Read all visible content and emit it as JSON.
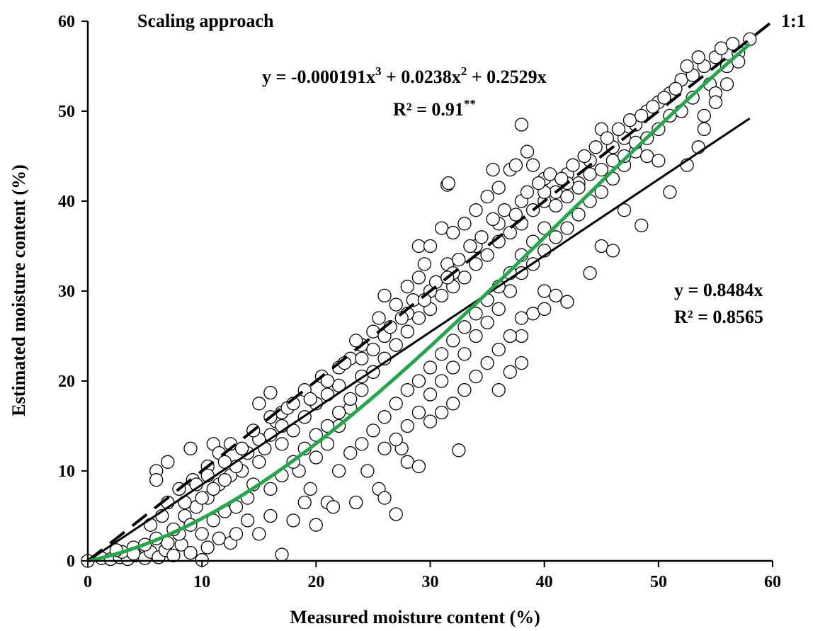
{
  "chart_data": {
    "type": "scatter",
    "title": "Scaling approach",
    "xlabel": "Measured moisture content (%)",
    "ylabel": "Estimated moisture content (%)",
    "xlim": [
      0,
      60
    ],
    "ylim": [
      0,
      60
    ],
    "x_ticks": [
      "0",
      "10",
      "20",
      "30",
      "40",
      "50",
      "60"
    ],
    "y_ticks": [
      "0",
      "10",
      "20",
      "30",
      "40",
      "50",
      "60"
    ],
    "grid": false,
    "legend": "none",
    "colors": {
      "points_edge": "#000000",
      "points_fill": "#ffffff",
      "linear_fit": "#000000",
      "one_to_one": "#000000",
      "poly_fit": "#22a84a"
    },
    "reference_line": {
      "label": "1:1",
      "slope": 1,
      "x_range": [
        0,
        60
      ],
      "style": "dashed"
    },
    "linear_fit": {
      "slope": 0.8484,
      "x_range": [
        0,
        58
      ],
      "equation": "y = 0.8484x",
      "r2_text": "R² = 0.8565"
    },
    "poly_fit": {
      "coefficients": {
        "a3": -0.000191,
        "a2": 0.0238,
        "a1": 0.2529
      },
      "x_range": [
        0,
        58
      ],
      "equation_parts": {
        "p1": "y = -0.000191x",
        "s1": "3",
        "p2": " + 0.0238x",
        "s2": "2",
        "p3": " + 0.2529x"
      },
      "r2_parts": {
        "base": "R² = 0.91",
        "sup": "**"
      }
    },
    "points": [
      [
        0.0,
        0.0
      ],
      [
        1.2,
        0.3
      ],
      [
        2.0,
        0.2
      ],
      [
        2.8,
        0.4
      ],
      [
        3.5,
        0.2
      ],
      [
        4.2,
        0.6
      ],
      [
        5.0,
        0.3
      ],
      [
        5.5,
        1.0
      ],
      [
        6.2,
        0.4
      ],
      [
        6.8,
        1.2
      ],
      [
        7.5,
        0.6
      ],
      [
        8.2,
        1.8
      ],
      [
        9.0,
        0.9
      ],
      [
        10.0,
        0.1
      ],
      [
        10.5,
        1.5
      ],
      [
        11.5,
        2.5
      ],
      [
        12.5,
        2.0
      ],
      [
        13.0,
        3.0
      ],
      [
        3.0,
        1.0
      ],
      [
        4.0,
        1.5
      ],
      [
        2.5,
        1.2
      ],
      [
        6.0,
        10.0
      ],
      [
        6.0,
        9.0
      ],
      [
        7.0,
        11.0
      ],
      [
        9.0,
        12.5
      ],
      [
        11.0,
        13.0
      ],
      [
        12.5,
        13.0
      ],
      [
        11.5,
        12.0
      ],
      [
        10.5,
        10.5
      ],
      [
        9.2,
        9.0
      ],
      [
        8.0,
        8.0
      ],
      [
        7.0,
        6.5
      ],
      [
        6.5,
        5.0
      ],
      [
        5.5,
        4.0
      ],
      [
        8.5,
        5.0
      ],
      [
        9.5,
        6.0
      ],
      [
        10.5,
        7.0
      ],
      [
        11.5,
        8.5
      ],
      [
        12.5,
        9.5
      ],
      [
        13.5,
        10.0
      ],
      [
        14.0,
        7.0
      ],
      [
        14.5,
        8.5
      ],
      [
        15.0,
        11.0
      ],
      [
        15.5,
        12.5
      ],
      [
        16.0,
        14.0
      ],
      [
        16.5,
        15.5
      ],
      [
        17.0,
        16.5
      ],
      [
        15.0,
        17.5
      ],
      [
        16.0,
        18.7
      ],
      [
        17.5,
        17.0
      ],
      [
        15.0,
        3.0
      ],
      [
        16.0,
        5.0
      ],
      [
        17.0,
        0.7
      ],
      [
        18.0,
        4.5
      ],
      [
        19.0,
        6.5
      ],
      [
        20.0,
        4.0
      ],
      [
        21.0,
        6.5
      ],
      [
        21.5,
        6.0
      ],
      [
        19.5,
        8.0
      ],
      [
        18.5,
        10.0
      ],
      [
        20.0,
        11.5
      ],
      [
        21.0,
        13.0
      ],
      [
        22.0,
        15.0
      ],
      [
        23.0,
        17.0
      ],
      [
        24.0,
        19.0
      ],
      [
        23.5,
        6.5
      ],
      [
        24.5,
        10.0
      ],
      [
        25.5,
        8.0
      ],
      [
        26.0,
        7.0
      ],
      [
        27.0,
        5.2
      ],
      [
        28.0,
        11.0
      ],
      [
        29.0,
        10.5
      ],
      [
        27.5,
        12.5
      ],
      [
        32.5,
        12.3
      ],
      [
        19.0,
        19.0
      ],
      [
        20.5,
        20.5
      ],
      [
        22.0,
        21.5
      ],
      [
        23.0,
        22.5
      ],
      [
        24.0,
        24.0
      ],
      [
        25.0,
        25.5
      ],
      [
        25.5,
        27.0
      ],
      [
        26.0,
        29.5
      ],
      [
        27.0,
        28.5
      ],
      [
        28.0,
        30.5
      ],
      [
        29.0,
        31.5
      ],
      [
        29.5,
        33.0
      ],
      [
        29.0,
        35.0
      ],
      [
        30.0,
        35.0
      ],
      [
        31.0,
        37.0
      ],
      [
        32.0,
        36.5
      ],
      [
        31.5,
        33.0
      ],
      [
        31.5,
        41.8
      ],
      [
        31.6,
        42.0
      ],
      [
        33.0,
        37.5
      ],
      [
        34.0,
        39.0
      ],
      [
        35.0,
        40.5
      ],
      [
        35.5,
        43.5
      ],
      [
        36.0,
        41.5
      ],
      [
        37.0,
        43.5
      ],
      [
        37.5,
        44.0
      ],
      [
        38.0,
        48.5
      ],
      [
        38.5,
        45.5
      ],
      [
        39.0,
        44.0
      ],
      [
        40.0,
        42.5
      ],
      [
        41.0,
        41.0
      ],
      [
        42.0,
        43.0
      ],
      [
        43.0,
        42.0
      ],
      [
        44.0,
        44.5
      ],
      [
        45.0,
        48.0
      ],
      [
        46.0,
        46.0
      ],
      [
        47.0,
        47.0
      ],
      [
        48.0,
        48.5
      ],
      [
        49.0,
        50.0
      ],
      [
        50.0,
        51.0
      ],
      [
        51.0,
        52.0
      ],
      [
        52.0,
        53.5
      ],
      [
        53.0,
        54.0
      ],
      [
        54.0,
        55.0
      ],
      [
        55.0,
        56.0
      ],
      [
        55.5,
        57.0
      ],
      [
        56.0,
        55.0
      ],
      [
        57.0,
        56.5
      ],
      [
        58.0,
        58.0
      ],
      [
        54.5,
        53.0
      ],
      [
        55.0,
        52.0
      ],
      [
        53.0,
        51.5
      ],
      [
        52.0,
        50.0
      ],
      [
        51.0,
        49.5
      ],
      [
        50.0,
        48.0
      ],
      [
        49.0,
        47.0
      ],
      [
        48.0,
        45.5
      ],
      [
        47.0,
        44.0
      ],
      [
        46.0,
        42.5
      ],
      [
        45.0,
        41.0
      ],
      [
        44.0,
        40.0
      ],
      [
        43.0,
        38.5
      ],
      [
        42.0,
        37.0
      ],
      [
        41.0,
        36.0
      ],
      [
        40.0,
        34.5
      ],
      [
        39.0,
        33.0
      ],
      [
        38.0,
        32.0
      ],
      [
        37.0,
        30.0
      ],
      [
        36.0,
        28.0
      ],
      [
        35.0,
        26.5
      ],
      [
        34.0,
        25.0
      ],
      [
        33.0,
        23.0
      ],
      [
        32.0,
        21.5
      ],
      [
        31.0,
        20.0
      ],
      [
        30.0,
        18.5
      ],
      [
        29.0,
        16.5
      ],
      [
        28.0,
        15.0
      ],
      [
        27.0,
        13.5
      ],
      [
        26.0,
        12.5
      ],
      [
        36.0,
        19.0
      ],
      [
        37.0,
        21.0
      ],
      [
        38.0,
        22.0
      ],
      [
        38.0,
        25.0
      ],
      [
        39.0,
        27.5
      ],
      [
        40.0,
        28.0
      ],
      [
        40.0,
        30.0
      ],
      [
        41.0,
        29.5
      ],
      [
        42.0,
        28.8
      ],
      [
        44.0,
        32.0
      ],
      [
        45.0,
        35.0
      ],
      [
        46.0,
        34.5
      ],
      [
        47.0,
        39.0
      ],
      [
        48.5,
        37.3
      ],
      [
        49.0,
        45.0
      ],
      [
        50.0,
        44.5
      ],
      [
        51.0,
        41.0
      ],
      [
        52.5,
        44.0
      ],
      [
        53.5,
        46.0
      ],
      [
        54.0,
        48.0
      ],
      [
        54.0,
        49.5
      ],
      [
        55.0,
        51.0
      ],
      [
        56.0,
        53.0
      ],
      [
        57.0,
        55.5
      ],
      [
        10.0,
        3.0
      ],
      [
        11.0,
        4.5
      ],
      [
        12.0,
        5.5
      ],
      [
        13.0,
        6.0
      ],
      [
        14.0,
        4.5
      ],
      [
        16.0,
        8.0
      ],
      [
        17.0,
        9.5
      ],
      [
        18.0,
        11.0
      ],
      [
        19.0,
        12.5
      ],
      [
        20.0,
        14.0
      ],
      [
        21.0,
        15.0
      ],
      [
        22.0,
        16.5
      ],
      [
        23.0,
        18.0
      ],
      [
        24.0,
        20.5
      ],
      [
        25.0,
        21.0
      ],
      [
        26.0,
        22.5
      ],
      [
        27.0,
        24.0
      ],
      [
        28.0,
        25.5
      ],
      [
        29.0,
        27.0
      ],
      [
        30.0,
        28.0
      ],
      [
        31.0,
        29.5
      ],
      [
        32.0,
        30.5
      ],
      [
        33.0,
        31.5
      ],
      [
        34.0,
        33.0
      ],
      [
        35.0,
        34.0
      ],
      [
        36.0,
        35.5
      ],
      [
        37.0,
        36.5
      ],
      [
        38.0,
        37.5
      ],
      [
        39.0,
        39.0
      ],
      [
        40.0,
        40.0
      ],
      [
        41.0,
        39.5
      ],
      [
        42.0,
        40.5
      ],
      [
        43.0,
        41.5
      ],
      [
        44.0,
        43.0
      ],
      [
        45.0,
        43.5
      ],
      [
        46.0,
        44.5
      ],
      [
        47.0,
        45.0
      ],
      [
        48.0,
        46.5
      ],
      [
        22.0,
        10.0
      ],
      [
        23.0,
        12.0
      ],
      [
        24.0,
        13.0
      ],
      [
        25.0,
        14.5
      ],
      [
        26.0,
        16.0
      ],
      [
        27.0,
        17.5
      ],
      [
        28.0,
        19.0
      ],
      [
        29.0,
        20.0
      ],
      [
        30.0,
        21.5
      ],
      [
        31.0,
        23.0
      ],
      [
        32.0,
        24.5
      ],
      [
        33.0,
        26.0
      ],
      [
        34.0,
        27.5
      ],
      [
        35.0,
        29.0
      ],
      [
        36.0,
        30.5
      ],
      [
        37.0,
        32.0
      ],
      [
        38.0,
        34.0
      ],
      [
        39.0,
        35.5
      ],
      [
        40.0,
        37.0
      ],
      [
        30.0,
        15.5
      ],
      [
        31.0,
        16.5
      ],
      [
        32.0,
        17.5
      ],
      [
        33.0,
        19.0
      ],
      [
        34.0,
        20.5
      ],
      [
        35.0,
        22.0
      ],
      [
        36.0,
        23.5
      ],
      [
        37.0,
        25.0
      ],
      [
        38.0,
        27.0
      ],
      [
        20.0,
        17.5
      ],
      [
        21.0,
        18.5
      ],
      [
        22.0,
        19.5
      ],
      [
        24.0,
        22.5
      ],
      [
        26.0,
        25.0
      ],
      [
        28.0,
        27.5
      ],
      [
        30.0,
        30.0
      ],
      [
        32.0,
        32.0
      ],
      [
        34.0,
        35.0
      ],
      [
        36.0,
        37.5
      ],
      [
        38.0,
        40.0
      ],
      [
        40.0,
        41.0
      ],
      [
        42.0,
        42.0
      ],
      [
        14.0,
        12.0
      ],
      [
        15.0,
        13.5
      ],
      [
        17.0,
        13.0
      ],
      [
        18.0,
        14.5
      ],
      [
        19.0,
        16.0
      ],
      [
        13.0,
        10.5
      ],
      [
        12.0,
        9.0
      ],
      [
        11.0,
        8.0
      ],
      [
        10.0,
        7.0
      ],
      [
        9.0,
        4.0
      ],
      [
        8.0,
        3.0
      ],
      [
        7.0,
        2.0
      ],
      [
        6.0,
        2.5
      ],
      [
        5.0,
        1.8
      ],
      [
        4.0,
        0.8
      ],
      [
        7.5,
        3.5
      ],
      [
        8.5,
        6.5
      ],
      [
        9.5,
        8.5
      ],
      [
        10.5,
        9.5
      ],
      [
        12.0,
        11.0
      ],
      [
        13.5,
        12.5
      ],
      [
        14.5,
        14.5
      ],
      [
        16.0,
        16.0
      ],
      [
        17.0,
        15.0
      ],
      [
        18.0,
        17.5
      ],
      [
        19.5,
        18.0
      ],
      [
        21.0,
        20.0
      ],
      [
        22.5,
        22.0
      ],
      [
        23.5,
        24.5
      ],
      [
        25.0,
        23.5
      ],
      [
        26.5,
        26.0
      ],
      [
        27.5,
        27.0
      ],
      [
        28.5,
        29.0
      ],
      [
        29.5,
        29.0
      ],
      [
        30.5,
        31.0
      ],
      [
        31.5,
        31.5
      ],
      [
        32.5,
        33.5
      ],
      [
        33.5,
        35.0
      ],
      [
        34.5,
        36.0
      ],
      [
        35.5,
        38.0
      ],
      [
        36.5,
        39.0
      ],
      [
        37.5,
        38.5
      ],
      [
        38.5,
        41.0
      ],
      [
        39.5,
        42.0
      ],
      [
        40.5,
        43.0
      ],
      [
        41.5,
        42.5
      ],
      [
        42.5,
        44.0
      ],
      [
        43.5,
        45.0
      ],
      [
        44.5,
        46.0
      ],
      [
        45.5,
        47.0
      ],
      [
        46.5,
        48.0
      ],
      [
        47.5,
        49.0
      ],
      [
        48.5,
        49.5
      ],
      [
        49.5,
        50.5
      ],
      [
        50.5,
        51.5
      ],
      [
        51.5,
        52.5
      ],
      [
        52.5,
        55.0
      ],
      [
        53.5,
        56.0
      ],
      [
        56.5,
        57.5
      ]
    ]
  }
}
